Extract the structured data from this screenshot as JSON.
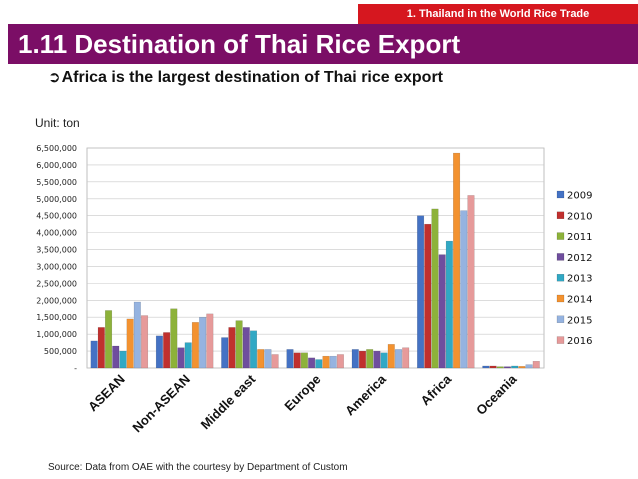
{
  "header": {
    "badge": "1. Thailand in the World Rice Trade",
    "title": "1.11 Destination of Thai Rice Export",
    "subtitle": "Africa is the largest destination of Thai rice export"
  },
  "unit_label": "Unit: ton",
  "source": "Source: Data from OAE with the courtesy by Department of Custom",
  "colors": {
    "badge": "#d6171f",
    "title_bar": "#7b0e66",
    "series": [
      "#4472c4",
      "#c0302e",
      "#8db23a",
      "#6f4e9e",
      "#31a8c4",
      "#f39230",
      "#95b3e0",
      "#e69a9a"
    ]
  },
  "chart_data": {
    "type": "bar",
    "title": "",
    "xlabel": "",
    "ylabel": "",
    "ylim": [
      0,
      6500000
    ],
    "grid": true,
    "legend_position": "right",
    "yticks": [
      "-",
      "500,000",
      "1,000,000",
      "1,500,000",
      "2,000,000",
      "2,500,000",
      "3,000,000",
      "3,500,000",
      "4,000,000",
      "4,500,000",
      "5,000,000",
      "5,500,000",
      "6,000,000",
      "6,500,000"
    ],
    "categories": [
      "ASEAN",
      "Non-ASEAN",
      "Middle east",
      "Europe",
      "America",
      "Africa",
      "Oceania"
    ],
    "series": [
      {
        "name": "2009",
        "values": [
          800000,
          950000,
          900000,
          550000,
          550000,
          4500000,
          60000
        ]
      },
      {
        "name": "2010",
        "values": [
          1200000,
          1050000,
          1200000,
          450000,
          500000,
          4250000,
          60000
        ]
      },
      {
        "name": "2011",
        "values": [
          1700000,
          1750000,
          1400000,
          450000,
          550000,
          4700000,
          40000
        ]
      },
      {
        "name": "2012",
        "values": [
          650000,
          600000,
          1200000,
          300000,
          500000,
          3350000,
          40000
        ]
      },
      {
        "name": "2013",
        "values": [
          500000,
          750000,
          1100000,
          250000,
          450000,
          3750000,
          60000
        ]
      },
      {
        "name": "2014",
        "values": [
          1450000,
          1350000,
          550000,
          350000,
          700000,
          6350000,
          50000
        ]
      },
      {
        "name": "2015",
        "values": [
          1950000,
          1500000,
          550000,
          350000,
          550000,
          4650000,
          100000
        ]
      },
      {
        "name": "2016",
        "values": [
          1550000,
          1600000,
          400000,
          400000,
          600000,
          5100000,
          200000
        ]
      }
    ]
  }
}
